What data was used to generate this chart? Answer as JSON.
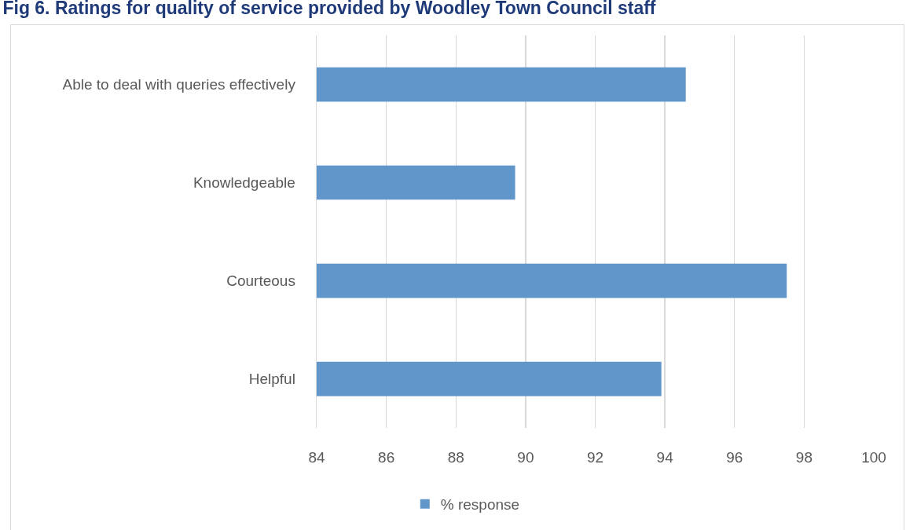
{
  "chart_data": {
    "type": "bar",
    "orientation": "horizontal",
    "title": "Fig 6. Ratings for quality of service provided by Woodley Town Council staff",
    "categories": [
      "Able to deal with queries effectively",
      "Knowledgeable",
      "Courteous",
      "Helpful"
    ],
    "series": [
      {
        "name": "% response",
        "color": "#6096c9",
        "values": [
          94.6,
          89.7,
          97.5,
          93.9
        ]
      }
    ],
    "xlim": [
      84,
      100
    ],
    "xticks": [
      84,
      86,
      88,
      90,
      92,
      94,
      96,
      98,
      100
    ],
    "grid": "x",
    "legend": "bottom"
  }
}
